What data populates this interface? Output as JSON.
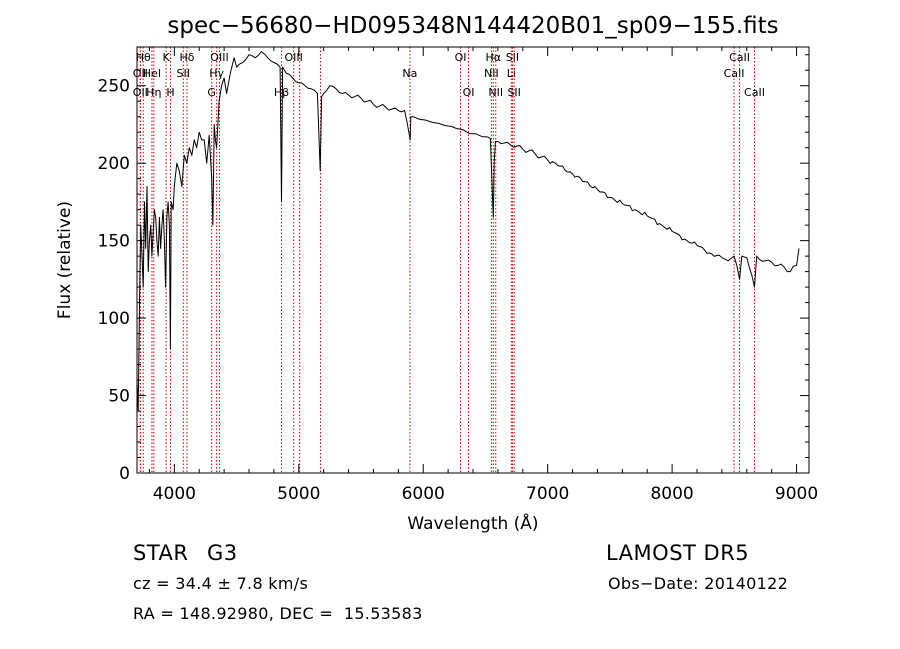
{
  "chart_data": {
    "type": "line",
    "title": "spec−56680−HD095348N144420B01_sp09−155.fits",
    "xlabel": "Wavelength (Å)",
    "ylabel": "Flux (relative)",
    "xlim": [
      3700,
      9100
    ],
    "ylim": [
      0,
      275
    ],
    "xticks": [
      4000,
      5000,
      6000,
      7000,
      8000,
      9000
    ],
    "yticks": [
      0,
      50,
      100,
      150,
      200,
      250
    ],
    "line_color": "#000000",
    "marker_color": "#cc0000",
    "series": [
      {
        "x": [
          3700,
          3710,
          3720,
          3730,
          3740,
          3750,
          3760,
          3770,
          3780,
          3790,
          3800,
          3810,
          3820,
          3830,
          3840,
          3850,
          3860,
          3870,
          3880,
          3890,
          3900,
          3910,
          3920,
          3930,
          3940,
          3950,
          3960,
          3968,
          3975,
          3990,
          4000,
          4020,
          4040,
          4060,
          4080,
          4100,
          4120,
          4140,
          4160,
          4180,
          4200,
          4220,
          4240,
          4260,
          4280,
          4300,
          4310,
          4320,
          4330,
          4340,
          4350,
          4360,
          4380,
          4400,
          4420,
          4450,
          4480,
          4500,
          4550,
          4600,
          4650,
          4700,
          4750,
          4800,
          4850,
          4861,
          4870,
          4900,
          4950,
          5000,
          5050,
          5100,
          5150,
          5172,
          5183,
          5200,
          5250,
          5300,
          5350,
          5400,
          5450,
          5500,
          5550,
          5600,
          5650,
          5700,
          5750,
          5800,
          5850,
          5895,
          5900,
          5950,
          6000,
          6050,
          6100,
          6150,
          6200,
          6250,
          6300,
          6350,
          6400,
          6450,
          6500,
          6540,
          6556,
          6563,
          6570,
          6580,
          6600,
          6650,
          6700,
          6750,
          6800,
          6850,
          6900,
          6950,
          7000,
          7100,
          7200,
          7300,
          7400,
          7500,
          7600,
          7700,
          7800,
          7900,
          8000,
          8100,
          8200,
          8300,
          8400,
          8450,
          8498,
          8520,
          8542,
          8560,
          8600,
          8662,
          8680,
          8700,
          8750,
          8800,
          8850,
          8900,
          8950,
          9000,
          9020
        ],
        "y": [
          60,
          40,
          110,
          160,
          140,
          120,
          175,
          145,
          185,
          130,
          150,
          160,
          140,
          155,
          170,
          165,
          150,
          140,
          165,
          145,
          160,
          170,
          150,
          120,
          165,
          175,
          160,
          80,
          175,
          170,
          185,
          200,
          195,
          185,
          205,
          200,
          210,
          205,
          215,
          210,
          220,
          215,
          215,
          200,
          218,
          190,
          160,
          225,
          215,
          210,
          225,
          240,
          250,
          255,
          245,
          258,
          268,
          262,
          265,
          270,
          268,
          272,
          268,
          265,
          262,
          175,
          262,
          258,
          255,
          252,
          250,
          248,
          245,
          195,
          243,
          245,
          250,
          248,
          245,
          244,
          243,
          242,
          240,
          238,
          237,
          236,
          235,
          234,
          234,
          215,
          230,
          229,
          228,
          227,
          226,
          225,
          224,
          223,
          222,
          220,
          219,
          218,
          217,
          216,
          180,
          165,
          200,
          214,
          214,
          213,
          212,
          211,
          209,
          208,
          206,
          204,
          202,
          198,
          193,
          188,
          183,
          178,
          174,
          170,
          166,
          161,
          156,
          151,
          147,
          142,
          139,
          137,
          140,
          134,
          125,
          140,
          139,
          120,
          140,
          138,
          137,
          136,
          134,
          133,
          130,
          134,
          145
        ]
      }
    ],
    "line_markers": [
      {
        "x": 3750,
        "label": "Hθ",
        "row": 0
      },
      {
        "x": 3727,
        "label": "OII",
        "row": 1
      },
      {
        "x": 3727,
        "label": "OII",
        "row": 2
      },
      {
        "x": 3820,
        "label": "HeI",
        "row": 1
      },
      {
        "x": 3835,
        "label": "Hη",
        "row": 2
      },
      {
        "x": 3934,
        "label": "K",
        "row": 0
      },
      {
        "x": 3969,
        "label": "H",
        "row": 2
      },
      {
        "x": 4072,
        "label": "SII",
        "row": 1
      },
      {
        "x": 4102,
        "label": "Hδ",
        "row": 0
      },
      {
        "x": 4300,
        "label": "G",
        "row": 2
      },
      {
        "x": 4340,
        "label": "Hγ",
        "row": 1
      },
      {
        "x": 4363,
        "label": "OIII",
        "row": 0
      },
      {
        "x": 4861,
        "label": "Hβ",
        "row": 2
      },
      {
        "x": 4959,
        "label": "OIII",
        "row": 0
      },
      {
        "x": 5007,
        "label": "",
        "row": 0
      },
      {
        "x": 5175,
        "label": "",
        "row": 0
      },
      {
        "x": 5893,
        "label": "Na",
        "row": 1
      },
      {
        "x": 6300,
        "label": "OI",
        "row": 0
      },
      {
        "x": 6364,
        "label": "OI",
        "row": 2
      },
      {
        "x": 6548,
        "label": "NII",
        "row": 1
      },
      {
        "x": 6563,
        "label": "Hα",
        "row": 0
      },
      {
        "x": 6583,
        "label": "NII",
        "row": 2
      },
      {
        "x": 6708,
        "label": "Li",
        "row": 1
      },
      {
        "x": 6717,
        "label": "SII",
        "row": 0
      },
      {
        "x": 6731,
        "label": "SII",
        "row": 2
      },
      {
        "x": 8498,
        "label": "CaII",
        "row": 1
      },
      {
        "x": 8542,
        "label": "CaII",
        "row": 0
      },
      {
        "x": 8662,
        "label": "CaII",
        "row": 2
      }
    ]
  },
  "info": {
    "class": "STAR",
    "subclass": "G3",
    "survey": "LAMOST DR5",
    "cz": "cz = 34.4 ± 7.8 km/s",
    "obs_date": "Obs−Date: 20140122",
    "coords": "RA = 148.92980, DEC =  15.53583"
  }
}
